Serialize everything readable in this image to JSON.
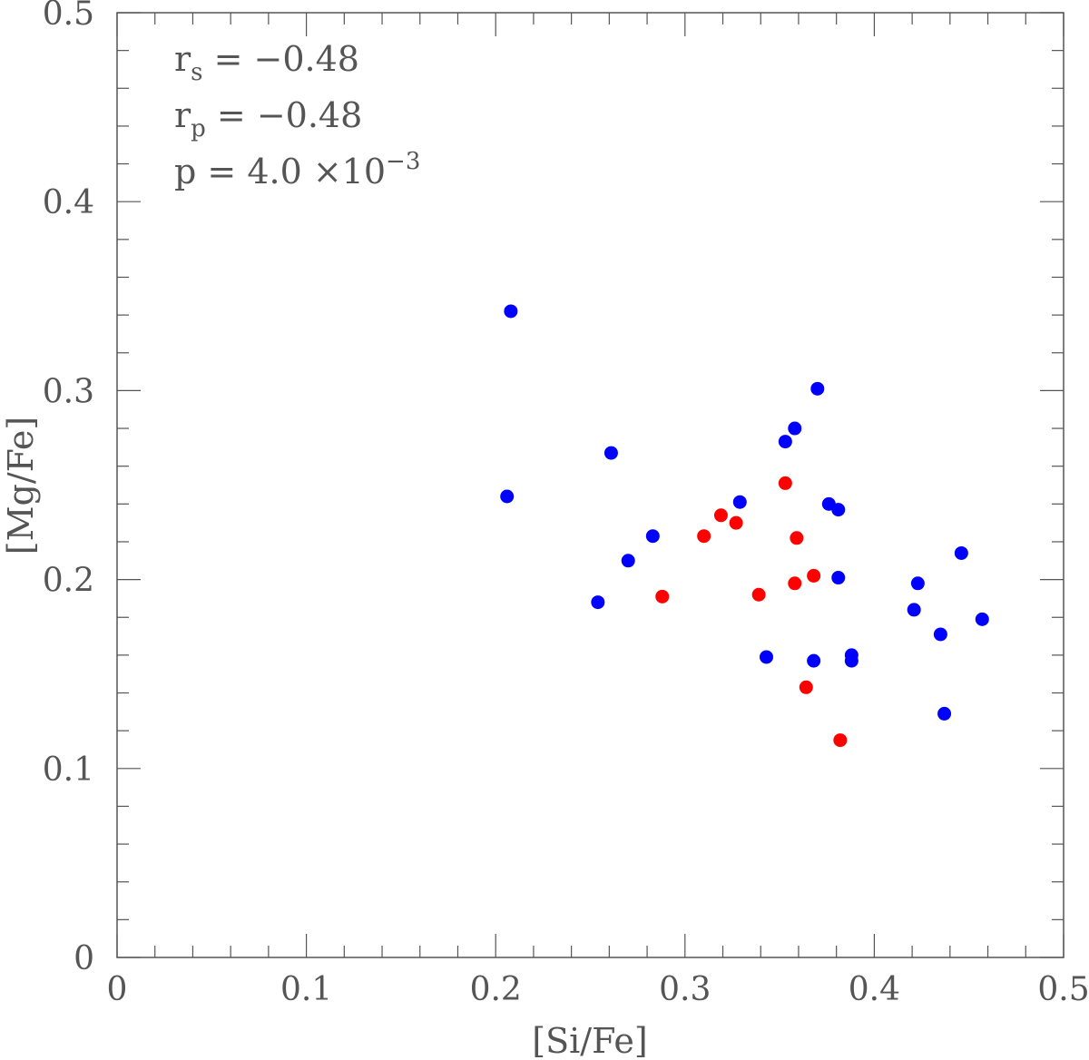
{
  "chart_data": {
    "type": "scatter",
    "xlabel": "[Si/Fe]",
    "ylabel": "[Mg/Fe]",
    "xlim": [
      0,
      0.5
    ],
    "ylim": [
      0,
      0.5
    ],
    "x_ticks": [
      "0",
      "0.1",
      "0.2",
      "0.3",
      "0.4",
      "0.5"
    ],
    "y_ticks": [
      "0",
      "0.1",
      "0.2",
      "0.3",
      "0.4",
      "0.5"
    ],
    "grid": false,
    "annotations": {
      "rs_main": "r",
      "rs_sub": "s",
      "rs_value": " = −0.48",
      "rp_main": "r",
      "rp_sub": "p",
      "rp_value": " = −0.48",
      "p_main": "p = 4.0 ×10",
      "p_exp": "−3"
    },
    "series": [
      {
        "color": "#0000ff",
        "points": [
          [
            0.208,
            0.342
          ],
          [
            0.206,
            0.244
          ],
          [
            0.261,
            0.267
          ],
          [
            0.254,
            0.188
          ],
          [
            0.27,
            0.21
          ],
          [
            0.283,
            0.223
          ],
          [
            0.329,
            0.241
          ],
          [
            0.353,
            0.273
          ],
          [
            0.358,
            0.28
          ],
          [
            0.37,
            0.301
          ],
          [
            0.376,
            0.24
          ],
          [
            0.381,
            0.237
          ],
          [
            0.381,
            0.201
          ],
          [
            0.343,
            0.159
          ],
          [
            0.368,
            0.157
          ],
          [
            0.388,
            0.16
          ],
          [
            0.388,
            0.157
          ],
          [
            0.421,
            0.184
          ],
          [
            0.423,
            0.198
          ],
          [
            0.435,
            0.171
          ],
          [
            0.446,
            0.214
          ],
          [
            0.437,
            0.129
          ],
          [
            0.457,
            0.179
          ]
        ]
      },
      {
        "color": "#ff0000",
        "points": [
          [
            0.288,
            0.191
          ],
          [
            0.31,
            0.223
          ],
          [
            0.319,
            0.234
          ],
          [
            0.327,
            0.23
          ],
          [
            0.339,
            0.192
          ],
          [
            0.353,
            0.251
          ],
          [
            0.359,
            0.222
          ],
          [
            0.358,
            0.198
          ],
          [
            0.368,
            0.202
          ],
          [
            0.364,
            0.143
          ],
          [
            0.382,
            0.115
          ]
        ]
      }
    ]
  }
}
